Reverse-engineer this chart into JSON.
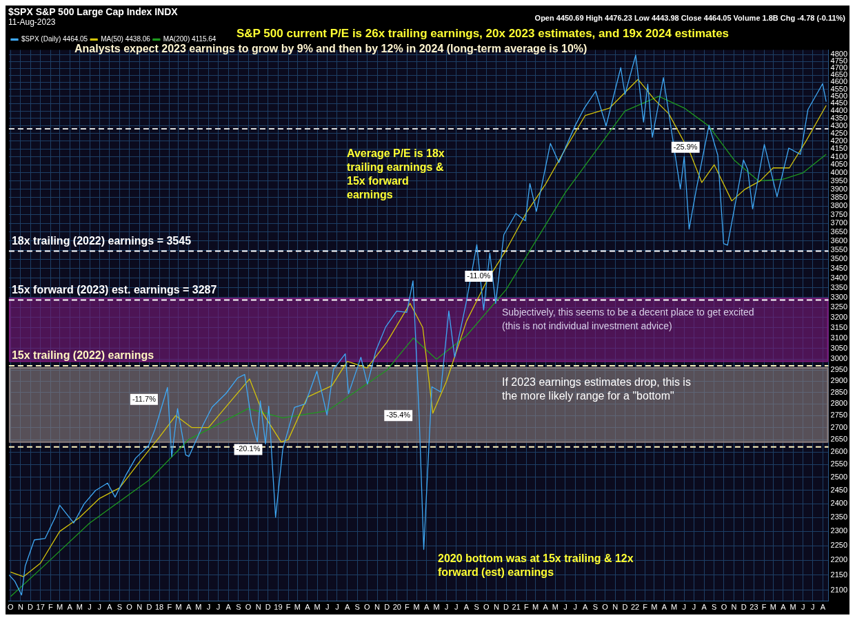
{
  "chart_data": {
    "type": "line",
    "title": "$SPX S&P 500 Large Cap Index INDX",
    "subtitle": "11-Aug-2023",
    "annotations": [
      "Open 4450.69 High 4476.23 Low 4443.98 Close 4464.05 Volume 1.8B Chg -4.78 (-0.11%)",
      "S&P 500 current P/E is 26x trailing earnings, 20x 2023 estimates, and 19x 2024 estimates",
      "Analysts expect 2023 earnings to grow by 9% and then by 12% in 2024 (long-term average is 10%)",
      "Average P/E is 18x trailing earnings & 15x forward earnings",
      "2020 bottom was at 15x trailing & 12x forward (est) earnings",
      {
        "text": "-11.7%",
        "x": "2017-11-15",
        "y": 2820
      },
      {
        "text": "-20.1%",
        "x": "2018-10-01",
        "y": 2610
      },
      {
        "text": "-35.4%",
        "x": "2020-01-05",
        "y": 2750
      },
      {
        "text": "-11.0%",
        "x": "2020-09-08",
        "y": 3410
      },
      {
        "text": "-25.9%",
        "x": "2022-06-05",
        "y": 4160
      }
    ],
    "series": [
      {
        "name": "$SPX (Daily) 4464.05",
        "color": "#3fa9f5",
        "x": [
          "2016-09-27",
          "2016-10-14",
          "2016-11-04",
          "2016-11-15",
          "2016-12-13",
          "2017-01-15",
          "2017-02-15",
          "2017-03-01",
          "2017-04-13",
          "2017-05-15",
          "2017-06-19",
          "2017-07-26",
          "2017-08-18",
          "2017-09-20",
          "2017-10-20",
          "2017-11-29",
          "2017-12-18",
          "2018-01-26",
          "2018-02-08",
          "2018-02-26",
          "2018-03-23",
          "2018-04-02",
          "2018-05-15",
          "2018-06-12",
          "2018-07-25",
          "2018-08-29",
          "2018-09-20",
          "2018-10-11",
          "2018-10-29",
          "2018-11-07",
          "2018-11-23",
          "2018-12-03",
          "2018-12-24",
          "2019-01-15",
          "2019-02-20",
          "2019-03-25",
          "2019-04-30",
          "2019-05-31",
          "2019-06-20",
          "2019-07-26",
          "2019-08-05",
          "2019-09-12",
          "2019-10-02",
          "2019-10-28",
          "2019-11-27",
          "2019-12-31",
          "2020-01-31",
          "2020-02-19",
          "2020-03-09",
          "2020-03-23",
          "2020-04-17",
          "2020-05-14",
          "2020-06-08",
          "2020-06-26",
          "2020-07-31",
          "2020-09-02",
          "2020-09-23",
          "2020-10-12",
          "2020-10-30",
          "2020-11-24",
          "2020-12-31",
          "2021-01-29",
          "2021-02-12",
          "2021-03-04",
          "2021-04-16",
          "2021-05-12",
          "2021-06-30",
          "2021-07-29",
          "2021-09-02",
          "2021-10-04",
          "2021-11-18",
          "2021-12-01",
          "2022-01-03",
          "2022-01-27",
          "2022-02-09",
          "2022-02-23",
          "2022-03-29",
          "2022-05-20",
          "2022-06-01",
          "2022-06-16",
          "2022-07-08",
          "2022-08-16",
          "2022-09-12",
          "2022-09-30",
          "2022-10-12",
          "2022-11-30",
          "2022-12-13",
          "2022-12-28",
          "2023-02-02",
          "2023-03-13",
          "2023-04-18",
          "2023-05-24",
          "2023-06-16",
          "2023-07-31",
          "2023-08-11"
        ],
        "values": [
          2150,
          2130,
          2085,
          2180,
          2270,
          2275,
          2350,
          2395,
          2330,
          2400,
          2450,
          2478,
          2425,
          2508,
          2575,
          2626,
          2690,
          2872,
          2581,
          2780,
          2588,
          2582,
          2710,
          2786,
          2846,
          2914,
          2930,
          2728,
          2641,
          2813,
          2632,
          2790,
          2351,
          2610,
          2785,
          2800,
          2945,
          2752,
          2954,
          3025,
          2844,
          3009,
          2887,
          3039,
          3153,
          3231,
          3225,
          3386,
          2746,
          2237,
          2875,
          2852,
          3232,
          3009,
          3271,
          3580,
          3237,
          3534,
          3270,
          3635,
          3756,
          3714,
          3934,
          3768,
          4185,
          4063,
          4297,
          4419,
          4537,
          4300,
          4704,
          4513,
          4797,
          4326,
          4587,
          4225,
          4632,
          3901,
          4101,
          3667,
          3899,
          4305,
          4110,
          3586,
          3577,
          4080,
          4019,
          3783,
          4179,
          3855,
          4155,
          4115,
          4410,
          4589,
          4464
        ]
      },
      {
        "name": "MA(50) 4438.06",
        "color": "#d4c40a",
        "x": [
          "2016-10-01",
          "2016-11-10",
          "2017-01-01",
          "2017-03-01",
          "2017-05-01",
          "2017-07-01",
          "2017-09-01",
          "2017-11-01",
          "2018-01-01",
          "2018-02-20",
          "2018-04-10",
          "2018-06-01",
          "2018-08-01",
          "2018-10-05",
          "2018-11-15",
          "2019-01-10",
          "2019-02-01",
          "2019-04-01",
          "2019-06-15",
          "2019-08-01",
          "2019-10-01",
          "2019-12-01",
          "2020-02-10",
          "2020-03-20",
          "2020-04-20",
          "2020-06-01",
          "2020-08-01",
          "2020-10-01",
          "2020-12-01",
          "2021-02-01",
          "2021-04-01",
          "2021-06-01",
          "2021-08-01",
          "2021-10-15",
          "2022-01-10",
          "2022-03-01",
          "2022-04-15",
          "2022-06-20",
          "2022-07-25",
          "2022-09-01",
          "2022-10-25",
          "2022-12-05",
          "2023-01-20",
          "2023-03-01",
          "2023-04-20",
          "2023-06-10",
          "2023-08-11"
        ],
        "values": [
          2160,
          2145,
          2190,
          2300,
          2350,
          2420,
          2460,
          2560,
          2660,
          2750,
          2700,
          2700,
          2800,
          2910,
          2760,
          2640,
          2650,
          2830,
          2880,
          2990,
          2960,
          3080,
          3270,
          3150,
          2760,
          2900,
          3180,
          3380,
          3550,
          3760,
          3930,
          4150,
          4370,
          4420,
          4620,
          4480,
          4380,
          4120,
          3940,
          4050,
          3830,
          3900,
          3950,
          4030,
          4030,
          4200,
          4438
        ]
      },
      {
        "name": "MA(200) 4115.64",
        "color": "#1f9a1f",
        "x": [
          "2016-10-01",
          "2017-01-01",
          "2017-06-01",
          "2017-12-01",
          "2018-04-01",
          "2018-10-01",
          "2019-01-15",
          "2019-06-01",
          "2019-12-01",
          "2020-02-20",
          "2020-05-01",
          "2020-08-01",
          "2020-12-01",
          "2021-06-01",
          "2021-12-01",
          "2022-03-15",
          "2022-06-01",
          "2022-08-15",
          "2022-11-01",
          "2023-01-15",
          "2023-04-01",
          "2023-06-01",
          "2023-08-11"
        ],
        "values": [
          2080,
          2170,
          2330,
          2490,
          2650,
          2780,
          2740,
          2770,
          2950,
          3100,
          3000,
          3110,
          3340,
          3880,
          4400,
          4500,
          4420,
          4300,
          4080,
          3950,
          3960,
          4000,
          4115
        ]
      }
    ],
    "xlim": [
      "2016-09-26",
      "2023-08-18"
    ],
    "xticks": [
      {
        "value": "2016-10-01",
        "label": "O"
      },
      {
        "value": "2016-11-01",
        "label": "N"
      },
      {
        "value": "2016-12-01",
        "label": "D"
      },
      {
        "value": "2017-01-01",
        "label": "17"
      },
      {
        "value": "2017-02-01",
        "label": "F"
      },
      {
        "value": "2017-03-01",
        "label": "M"
      },
      {
        "value": "2017-04-01",
        "label": "A"
      },
      {
        "value": "2017-05-01",
        "label": "M"
      },
      {
        "value": "2017-06-01",
        "label": "J"
      },
      {
        "value": "2017-07-01",
        "label": "J"
      },
      {
        "value": "2017-08-01",
        "label": "A"
      },
      {
        "value": "2017-09-01",
        "label": "S"
      },
      {
        "value": "2017-10-01",
        "label": "O"
      },
      {
        "value": "2017-11-01",
        "label": "N"
      },
      {
        "value": "2017-12-01",
        "label": "D"
      },
      {
        "value": "2018-01-01",
        "label": "18"
      },
      {
        "value": "2018-02-01",
        "label": "F"
      },
      {
        "value": "2018-03-01",
        "label": "M"
      },
      {
        "value": "2018-04-01",
        "label": "A"
      },
      {
        "value": "2018-05-01",
        "label": "M"
      },
      {
        "value": "2018-06-01",
        "label": "J"
      },
      {
        "value": "2018-07-01",
        "label": "J"
      },
      {
        "value": "2018-08-01",
        "label": "A"
      },
      {
        "value": "2018-09-01",
        "label": "S"
      },
      {
        "value": "2018-10-01",
        "label": "O"
      },
      {
        "value": "2018-11-01",
        "label": "N"
      },
      {
        "value": "2018-12-01",
        "label": "D"
      },
      {
        "value": "2019-01-01",
        "label": "19"
      },
      {
        "value": "2019-02-01",
        "label": "F"
      },
      {
        "value": "2019-03-01",
        "label": "M"
      },
      {
        "value": "2019-04-01",
        "label": "A"
      },
      {
        "value": "2019-05-01",
        "label": "M"
      },
      {
        "value": "2019-06-01",
        "label": "J"
      },
      {
        "value": "2019-07-01",
        "label": "J"
      },
      {
        "value": "2019-08-01",
        "label": "A"
      },
      {
        "value": "2019-09-01",
        "label": "S"
      },
      {
        "value": "2019-10-01",
        "label": "O"
      },
      {
        "value": "2019-11-01",
        "label": "N"
      },
      {
        "value": "2019-12-01",
        "label": "D"
      },
      {
        "value": "2020-01-01",
        "label": "20"
      },
      {
        "value": "2020-02-01",
        "label": "F"
      },
      {
        "value": "2020-03-01",
        "label": "M"
      },
      {
        "value": "2020-04-01",
        "label": "A"
      },
      {
        "value": "2020-05-01",
        "label": "M"
      },
      {
        "value": "2020-06-01",
        "label": "J"
      },
      {
        "value": "2020-07-01",
        "label": "J"
      },
      {
        "value": "2020-08-01",
        "label": "A"
      },
      {
        "value": "2020-09-01",
        "label": "S"
      },
      {
        "value": "2020-10-01",
        "label": "O"
      },
      {
        "value": "2020-11-01",
        "label": "N"
      },
      {
        "value": "2020-12-01",
        "label": "D"
      },
      {
        "value": "2021-01-01",
        "label": "21"
      },
      {
        "value": "2021-02-01",
        "label": "F"
      },
      {
        "value": "2021-03-01",
        "label": "M"
      },
      {
        "value": "2021-04-01",
        "label": "A"
      },
      {
        "value": "2021-05-01",
        "label": "M"
      },
      {
        "value": "2021-06-01",
        "label": "J"
      },
      {
        "value": "2021-07-01",
        "label": "J"
      },
      {
        "value": "2021-08-01",
        "label": "A"
      },
      {
        "value": "2021-09-01",
        "label": "S"
      },
      {
        "value": "2021-10-01",
        "label": "O"
      },
      {
        "value": "2021-11-01",
        "label": "N"
      },
      {
        "value": "2021-12-01",
        "label": "D"
      },
      {
        "value": "2022-01-01",
        "label": "22"
      },
      {
        "value": "2022-02-01",
        "label": "F"
      },
      {
        "value": "2022-03-01",
        "label": "M"
      },
      {
        "value": "2022-04-01",
        "label": "A"
      },
      {
        "value": "2022-05-01",
        "label": "M"
      },
      {
        "value": "2022-06-01",
        "label": "J"
      },
      {
        "value": "2022-07-01",
        "label": "J"
      },
      {
        "value": "2022-08-01",
        "label": "A"
      },
      {
        "value": "2022-09-01",
        "label": "S"
      },
      {
        "value": "2022-10-01",
        "label": "O"
      },
      {
        "value": "2022-11-01",
        "label": "N"
      },
      {
        "value": "2022-12-01",
        "label": "D"
      },
      {
        "value": "2023-01-01",
        "label": "23"
      },
      {
        "value": "2023-02-01",
        "label": "F"
      },
      {
        "value": "2023-03-01",
        "label": "M"
      },
      {
        "value": "2023-04-01",
        "label": "A"
      },
      {
        "value": "2023-05-01",
        "label": "M"
      },
      {
        "value": "2023-06-01",
        "label": "J"
      },
      {
        "value": "2023-07-01",
        "label": "J"
      },
      {
        "value": "2023-08-01",
        "label": "A"
      }
    ],
    "ylim": [
      2065,
      4835
    ],
    "yticks": [
      2100,
      2150,
      2200,
      2250,
      2300,
      2350,
      2400,
      2450,
      2500,
      2550,
      2600,
      2650,
      2700,
      2750,
      2800,
      2850,
      2900,
      2950,
      3000,
      3050,
      3100,
      3150,
      3200,
      3250,
      3300,
      3350,
      3400,
      3450,
      3500,
      3550,
      3600,
      3650,
      3700,
      3750,
      3800,
      3850,
      3900,
      3950,
      4000,
      4050,
      4100,
      4150,
      4200,
      4250,
      4300,
      4350,
      4400,
      4450,
      4500,
      4550,
      4600,
      4650,
      4700,
      4750,
      4800
    ],
    "log": "y",
    "grid": true,
    "legend": "top left",
    "marker": "none",
    "line_style": "solid",
    "ref_lines": [
      {
        "axis": "y",
        "value": 3545,
        "label": "18x trailing (2022) earnings = 3545",
        "color": "#ffffff",
        "line_style": "dashed"
      },
      {
        "axis": "y",
        "value": 3287,
        "label": "15x forward (2023) est. earnings = 3287",
        "color": "#ffffff",
        "line_style": "dashed"
      },
      {
        "axis": "y",
        "value": 2970,
        "label": "15x trailing (2022) earnings",
        "color": "#fff5c0",
        "line_style": "dashed"
      },
      {
        "axis": "y",
        "value": 2620,
        "label": null,
        "color": "#fff5c0",
        "line_style": "dashed"
      },
      {
        "axis": "y",
        "value": 4280,
        "label": null,
        "color": "#dddddd",
        "line_style": "dashed"
      }
    ],
    "bands": [
      {
        "axis": "y",
        "from": 2990,
        "to": 3295,
        "label": "Subjectively, this seems to be a decent place to get excited\n(this is not individual investment advice)",
        "color": "#7a1a7a"
      },
      {
        "axis": "y",
        "from": 2640,
        "to": 2960,
        "label": "If 2023 earnings estimates drop, this is\nthe more likely range for a \"bottom\"",
        "color": "#8a7f7f"
      }
    ]
  }
}
